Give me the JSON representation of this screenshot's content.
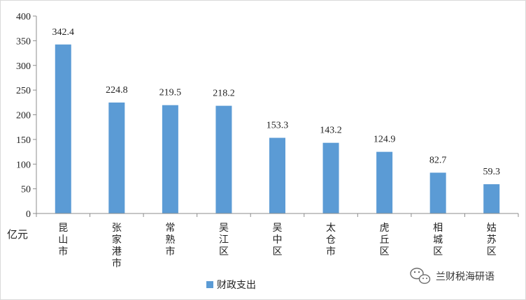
{
  "chart_data": {
    "type": "bar",
    "categories": [
      "昆山市",
      "张家港市",
      "常熟市",
      "吴江区",
      "吴中区",
      "太仓市",
      "虎丘区",
      "相城区",
      "姑苏区"
    ],
    "series": [
      {
        "name": "财政支出",
        "values": [
          342.4,
          224.8,
          219.5,
          218.2,
          153.3,
          143.2,
          124.9,
          82.7,
          59.3
        ]
      }
    ],
    "data_labels": [
      "342.4",
      "224.8",
      "219.5",
      "218.2",
      "153.3",
      "143.2",
      "124.9",
      "82.7",
      "59.3"
    ],
    "ylabel": "亿元",
    "ylim": [
      0,
      400
    ],
    "yticks": [
      "0",
      "50",
      "100",
      "150",
      "200",
      "250",
      "300",
      "350",
      "400"
    ],
    "grid": false,
    "legend_position": "bottom-left",
    "colors": {
      "bar": "#5b9bd5",
      "axis": "#8c8c8c",
      "frame": "#d9d9d9"
    }
  },
  "watermark": {
    "icon": "wechat-logo",
    "text": "兰财税海研语"
  }
}
